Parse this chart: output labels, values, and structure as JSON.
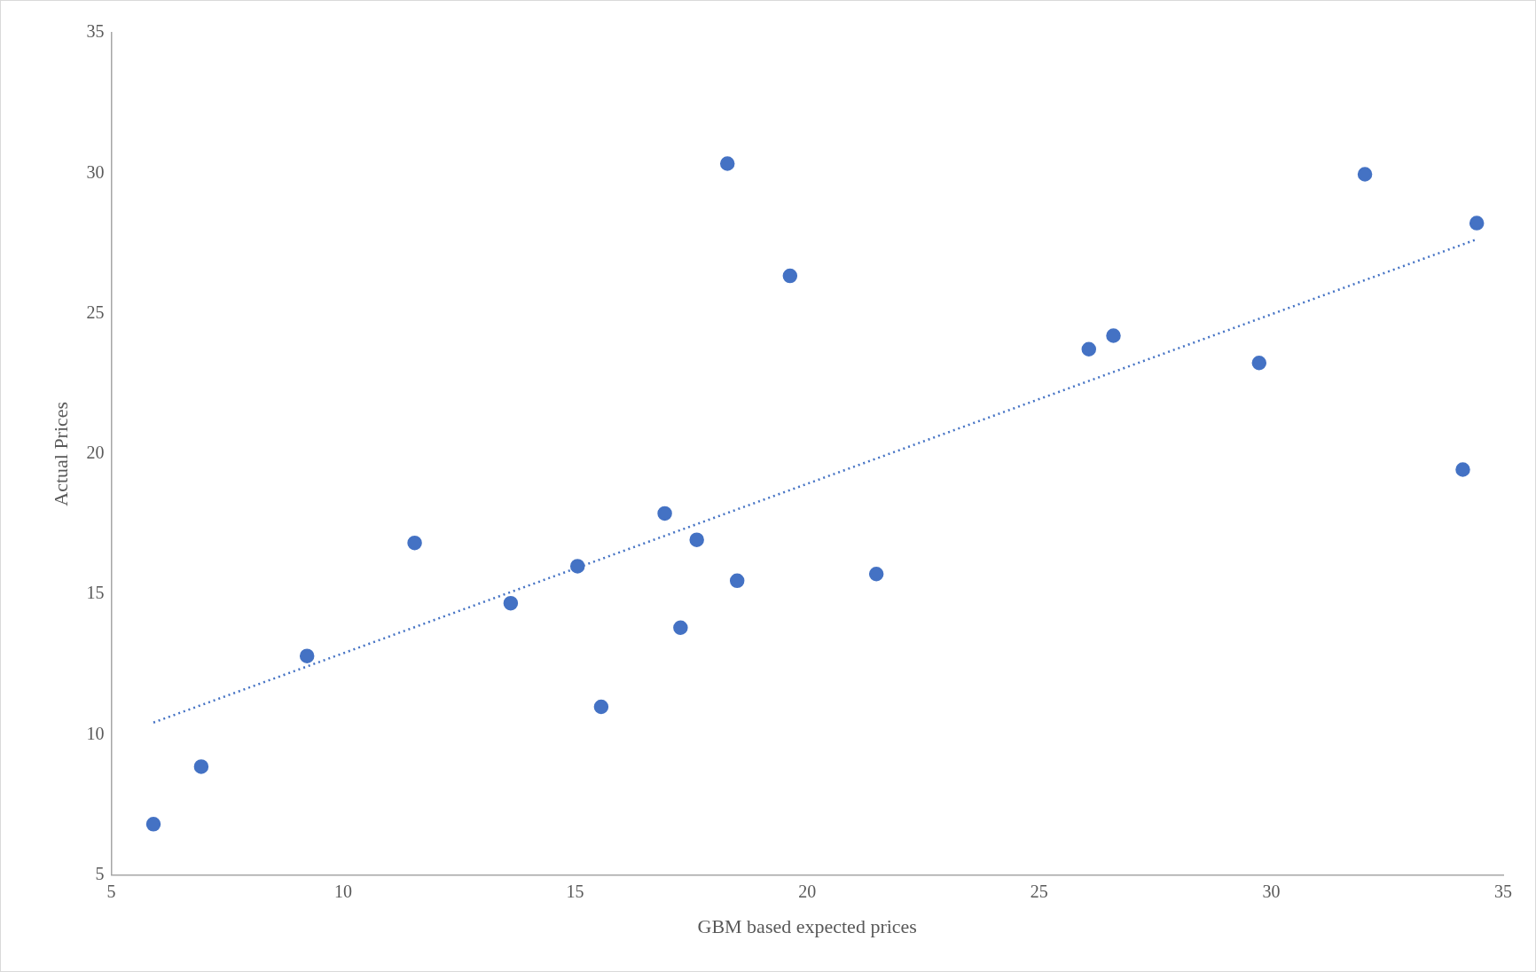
{
  "chart_data": {
    "type": "scatter",
    "xlabel": "GBM based expected prices",
    "ylabel": "Actual Prices",
    "xlim": [
      5,
      35
    ],
    "ylim": [
      5,
      35
    ],
    "xticks": [
      5,
      10,
      15,
      20,
      25,
      30,
      35
    ],
    "yticks": [
      5,
      10,
      15,
      20,
      25,
      30,
      35
    ],
    "legend": false,
    "series": [
      {
        "type": "scatter",
        "color": "#4472c4",
        "marker": "circle",
        "x": [
          5.91,
          6.94,
          9.22,
          11.54,
          13.61,
          15.05,
          15.56,
          16.93,
          17.27,
          17.62,
          18.28,
          18.49,
          19.63,
          21.49,
          26.07,
          26.6,
          29.74,
          32.02,
          34.13,
          34.43
        ],
        "values": [
          6.81,
          8.86,
          12.8,
          16.83,
          14.68,
          16.0,
          10.99,
          17.88,
          13.81,
          16.94,
          30.34,
          15.48,
          26.34,
          15.72,
          23.73,
          24.21,
          23.24,
          29.96,
          19.44,
          28.22
        ]
      },
      {
        "type": "line",
        "color": "#4472c4",
        "marker": "none",
        "line_style": "dotted",
        "x": [
          5.91,
          34.39
        ],
        "values": [
          10.43,
          27.62
        ]
      }
    ]
  }
}
